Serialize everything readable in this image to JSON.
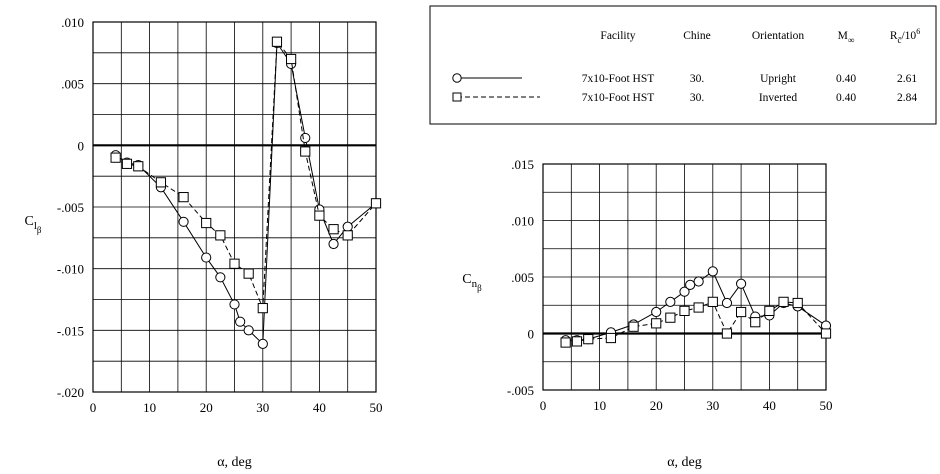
{
  "legend": {
    "headers": {
      "facility": "Facility",
      "chine": "Chine",
      "orientation": "Orientation",
      "mach_base": "M",
      "mach_sub": "∞",
      "reynolds_base": "R",
      "reynolds_sub": "c̄",
      "reynolds_suffix": "/10",
      "reynolds_sup": "6"
    },
    "rows": [
      {
        "facility": "7x10-Foot HST",
        "chine": "30.",
        "orientation": "Upright",
        "mach": "0.40",
        "reynolds": "2.61",
        "marker": "circle",
        "line": "solid"
      },
      {
        "facility": "7x10-Foot HST",
        "chine": "30.",
        "orientation": "Inverted",
        "mach": "0.40",
        "reynolds": "2.84",
        "marker": "square",
        "line": "dashed"
      }
    ]
  },
  "chart_data": [
    {
      "type": "line",
      "ylabel_base": "C",
      "ylabel_sub": "l",
      "ylabel_subsub": "β",
      "xlabel": "α, deg",
      "xlim": [
        0,
        50
      ],
      "ylim": [
        -0.02,
        0.01
      ],
      "xticks": [
        0,
        10,
        20,
        30,
        40,
        50
      ],
      "yticks": [
        -0.02,
        -0.015,
        -0.01,
        -0.005,
        0,
        0.005,
        0.01
      ],
      "ytick_labels": [
        "-.020",
        "-.015",
        "-.010",
        "-.005",
        "0",
        ".005",
        ".010"
      ],
      "grid": true,
      "series": [
        {
          "marker": "circle",
          "line": "solid",
          "x": [
            4,
            6,
            8,
            12,
            16,
            20,
            22.5,
            25,
            26,
            27.5,
            30,
            32.5,
            35,
            37.5,
            40,
            42.5,
            45,
            50
          ],
          "y": [
            -0.0008,
            -0.0014,
            -0.0016,
            -0.0034,
            -0.0062,
            -0.0091,
            -0.0107,
            -0.0129,
            -0.0143,
            -0.015,
            -0.0161,
            0.0083,
            0.0066,
            0.0006,
            -0.0052,
            -0.008,
            -0.0066,
            -0.0047
          ]
        },
        {
          "marker": "square",
          "line": "dashed",
          "x": [
            4,
            6,
            8,
            12,
            16,
            20,
            22.5,
            25,
            27.5,
            30,
            32.5,
            35,
            37.5,
            40,
            42.5,
            45,
            50
          ],
          "y": [
            -0.001,
            -0.0015,
            -0.0017,
            -0.003,
            -0.0042,
            -0.0063,
            -0.0073,
            -0.0096,
            -0.0104,
            -0.0132,
            0.0084,
            0.007,
            -0.0005,
            -0.0057,
            -0.0068,
            -0.0073,
            -0.0047
          ]
        }
      ]
    },
    {
      "type": "line",
      "ylabel_base": "C",
      "ylabel_sub": "n",
      "ylabel_subsub": "β",
      "xlabel": "α, deg",
      "xlim": [
        0,
        50
      ],
      "ylim": [
        -0.005,
        0.015
      ],
      "xticks": [
        0,
        10,
        20,
        30,
        40,
        50
      ],
      "yticks": [
        -0.005,
        0,
        0.005,
        0.01,
        0.015
      ],
      "ytick_labels": [
        "-.005",
        "0",
        ".005",
        ".010",
        ".015"
      ],
      "grid": true,
      "series": [
        {
          "marker": "circle",
          "line": "solid",
          "x": [
            4,
            6,
            8,
            12,
            16,
            20,
            22.5,
            25,
            26,
            27.5,
            30,
            32.5,
            35,
            37.5,
            40,
            42.5,
            45,
            50
          ],
          "y": [
            -0.0006,
            -0.0006,
            -0.0005,
            0.0001,
            0.0008,
            0.0019,
            0.0028,
            0.0037,
            0.0043,
            0.0046,
            0.0055,
            0.0027,
            0.0044,
            0.0015,
            0.0016,
            0.0027,
            0.0024,
            0.0007
          ]
        },
        {
          "marker": "square",
          "line": "dashed",
          "x": [
            4,
            6,
            8,
            12,
            16,
            20,
            22.5,
            25,
            27.5,
            30,
            32.5,
            35,
            37.5,
            40,
            42.5,
            45,
            50
          ],
          "y": [
            -0.0008,
            -0.0007,
            -0.0005,
            -0.0004,
            0.0006,
            0.0009,
            0.0014,
            0.002,
            0.0023,
            0.0028,
            0.0,
            0.0019,
            0.001,
            0.002,
            0.0028,
            0.0027,
            0.0
          ]
        }
      ]
    }
  ]
}
